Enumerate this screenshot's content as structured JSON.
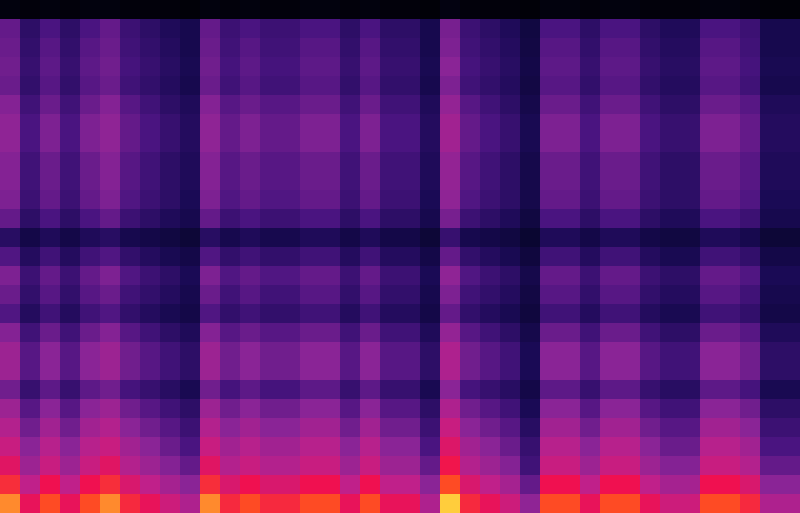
{
  "chart_data": {
    "type": "heatmap",
    "tick_labels": false,
    "zlim": [
      0,
      100
    ],
    "cells": [
      [
        5,
        4,
        5,
        4,
        5,
        5,
        4,
        4,
        4,
        3,
        5,
        4,
        5,
        4,
        4,
        5,
        5,
        4,
        5,
        4,
        4,
        3,
        6,
        4,
        4,
        4,
        3,
        5,
        5,
        4,
        5,
        5,
        4,
        4,
        4,
        5,
        5,
        4,
        3,
        3
      ],
      [
        42,
        32,
        38,
        32,
        38,
        42,
        35,
        32,
        29,
        26,
        42,
        35,
        38,
        35,
        35,
        38,
        38,
        32,
        38,
        32,
        32,
        26,
        45,
        35,
        32,
        29,
        22,
        38,
        38,
        32,
        38,
        38,
        32,
        29,
        29,
        38,
        38,
        35,
        26,
        26
      ],
      [
        43,
        33,
        40,
        33,
        40,
        43,
        36,
        33,
        30,
        26,
        43,
        36,
        40,
        36,
        36,
        40,
        40,
        33,
        40,
        33,
        33,
        26,
        46,
        36,
        33,
        30,
        23,
        40,
        40,
        33,
        40,
        40,
        33,
        30,
        30,
        40,
        40,
        36,
        26,
        26
      ],
      [
        44,
        34,
        41,
        34,
        41,
        44,
        37,
        34,
        31,
        27,
        44,
        37,
        41,
        37,
        37,
        41,
        41,
        34,
        41,
        34,
        34,
        27,
        48,
        37,
        34,
        31,
        24,
        41,
        41,
        34,
        41,
        41,
        34,
        31,
        31,
        41,
        41,
        37,
        27,
        27
      ],
      [
        43,
        33,
        40,
        33,
        40,
        43,
        36,
        33,
        30,
        26,
        43,
        36,
        40,
        36,
        36,
        40,
        40,
        33,
        40,
        33,
        33,
        26,
        46,
        36,
        33,
        30,
        23,
        40,
        40,
        33,
        40,
        40,
        33,
        30,
        30,
        40,
        40,
        36,
        26,
        26
      ],
      [
        47,
        36,
        43,
        36,
        43,
        47,
        40,
        36,
        32,
        29,
        47,
        40,
        43,
        40,
        40,
        43,
        43,
        36,
        43,
        36,
        36,
        29,
        50,
        40,
        36,
        32,
        25,
        43,
        43,
        36,
        43,
        43,
        36,
        32,
        32,
        43,
        43,
        40,
        29,
        29
      ],
      [
        49,
        38,
        46,
        38,
        46,
        49,
        42,
        38,
        34,
        30,
        49,
        42,
        46,
        42,
        42,
        46,
        46,
        38,
        46,
        38,
        38,
        30,
        53,
        42,
        38,
        34,
        27,
        46,
        46,
        38,
        46,
        46,
        38,
        34,
        34,
        46,
        46,
        42,
        30,
        30
      ],
      [
        49,
        38,
        46,
        38,
        46,
        49,
        42,
        38,
        34,
        30,
        49,
        42,
        46,
        42,
        42,
        46,
        46,
        38,
        46,
        38,
        38,
        30,
        53,
        42,
        38,
        34,
        27,
        46,
        46,
        38,
        46,
        46,
        38,
        34,
        34,
        46,
        46,
        42,
        30,
        30
      ],
      [
        47,
        36,
        43,
        36,
        43,
        47,
        40,
        36,
        32,
        29,
        47,
        40,
        43,
        40,
        40,
        43,
        43,
        36,
        43,
        36,
        36,
        29,
        50,
        40,
        36,
        32,
        25,
        43,
        43,
        36,
        43,
        43,
        36,
        32,
        32,
        43,
        43,
        40,
        29,
        29
      ],
      [
        47,
        36,
        43,
        36,
        43,
        47,
        40,
        36,
        32,
        29,
        47,
        40,
        43,
        40,
        40,
        43,
        43,
        36,
        43,
        36,
        36,
        29,
        50,
        40,
        36,
        32,
        25,
        43,
        43,
        36,
        43,
        43,
        36,
        32,
        32,
        43,
        43,
        40,
        29,
        29
      ],
      [
        46,
        35,
        42,
        35,
        42,
        46,
        39,
        35,
        32,
        28,
        46,
        39,
        42,
        39,
        39,
        42,
        42,
        35,
        42,
        35,
        35,
        28,
        49,
        39,
        35,
        32,
        25,
        42,
        42,
        35,
        42,
        42,
        35,
        32,
        32,
        42,
        42,
        39,
        28,
        28
      ],
      [
        42,
        32,
        38,
        32,
        38,
        42,
        35,
        32,
        29,
        26,
        42,
        35,
        38,
        35,
        35,
        38,
        38,
        32,
        38,
        32,
        32,
        26,
        45,
        35,
        32,
        29,
        22,
        38,
        38,
        32,
        38,
        38,
        32,
        29,
        29,
        38,
        38,
        35,
        26,
        26
      ],
      [
        31,
        24,
        29,
        24,
        29,
        31,
        26,
        24,
        22,
        19,
        31,
        26,
        29,
        26,
        26,
        29,
        29,
        24,
        29,
        24,
        24,
        19,
        34,
        26,
        24,
        22,
        17,
        29,
        29,
        24,
        29,
        29,
        24,
        22,
        22,
        29,
        29,
        26,
        19,
        19
      ],
      [
        39,
        30,
        36,
        30,
        36,
        39,
        33,
        30,
        27,
        24,
        39,
        33,
        36,
        33,
        33,
        36,
        36,
        30,
        36,
        30,
        30,
        24,
        42,
        33,
        30,
        27,
        21,
        36,
        36,
        30,
        36,
        36,
        30,
        27,
        27,
        36,
        36,
        33,
        24,
        24
      ],
      [
        46,
        35,
        42,
        35,
        42,
        46,
        39,
        35,
        32,
        28,
        46,
        39,
        42,
        39,
        39,
        42,
        42,
        35,
        42,
        35,
        35,
        28,
        49,
        39,
        35,
        32,
        25,
        42,
        42,
        35,
        42,
        42,
        35,
        32,
        32,
        42,
        42,
        39,
        28,
        28
      ],
      [
        43,
        33,
        40,
        33,
        40,
        43,
        36,
        33,
        30,
        26,
        43,
        36,
        40,
        36,
        36,
        40,
        40,
        33,
        40,
        33,
        33,
        26,
        46,
        36,
        33,
        30,
        23,
        40,
        40,
        33,
        40,
        40,
        33,
        30,
        30,
        40,
        40,
        36,
        26,
        26
      ],
      [
        39,
        30,
        36,
        30,
        36,
        39,
        33,
        30,
        27,
        24,
        39,
        33,
        36,
        33,
        33,
        36,
        36,
        30,
        36,
        30,
        30,
        24,
        42,
        33,
        30,
        27,
        21,
        36,
        36,
        30,
        36,
        36,
        30,
        27,
        27,
        36,
        36,
        33,
        24,
        24
      ],
      [
        47,
        36,
        43,
        36,
        43,
        47,
        40,
        36,
        32,
        29,
        47,
        40,
        43,
        40,
        40,
        43,
        43,
        36,
        43,
        36,
        36,
        29,
        50,
        40,
        36,
        32,
        25,
        43,
        43,
        36,
        43,
        43,
        36,
        32,
        32,
        43,
        43,
        40,
        29,
        29
      ],
      [
        52,
        40,
        48,
        40,
        48,
        52,
        44,
        40,
        36,
        32,
        52,
        44,
        48,
        44,
        44,
        48,
        48,
        40,
        48,
        40,
        40,
        32,
        56,
        44,
        40,
        36,
        28,
        48,
        48,
        40,
        48,
        48,
        40,
        36,
        36,
        48,
        48,
        44,
        32,
        32
      ],
      [
        52,
        40,
        48,
        40,
        48,
        52,
        44,
        40,
        36,
        32,
        52,
        44,
        48,
        44,
        44,
        48,
        48,
        40,
        48,
        40,
        40,
        32,
        56,
        44,
        40,
        36,
        28,
        48,
        48,
        40,
        48,
        48,
        40,
        36,
        36,
        48,
        48,
        44,
        32,
        32
      ],
      [
        44,
        34,
        41,
        34,
        41,
        44,
        37,
        34,
        31,
        27,
        44,
        37,
        41,
        37,
        37,
        41,
        41,
        34,
        41,
        34,
        34,
        27,
        48,
        37,
        34,
        31,
        24,
        41,
        41,
        34,
        41,
        41,
        34,
        31,
        31,
        41,
        41,
        37,
        27,
        27
      ],
      [
        52,
        40,
        48,
        40,
        48,
        52,
        44,
        40,
        36,
        32,
        52,
        44,
        48,
        44,
        44,
        48,
        48,
        40,
        48,
        40,
        40,
        32,
        56,
        44,
        40,
        36,
        28,
        48,
        48,
        40,
        48,
        48,
        40,
        36,
        36,
        48,
        48,
        44,
        32,
        32
      ],
      [
        57,
        44,
        53,
        44,
        53,
        57,
        48,
        44,
        40,
        35,
        57,
        48,
        53,
        48,
        48,
        53,
        53,
        44,
        53,
        44,
        44,
        35,
        62,
        48,
        44,
        40,
        31,
        53,
        53,
        44,
        53,
        53,
        44,
        40,
        40,
        53,
        53,
        48,
        35,
        35
      ],
      [
        62,
        48,
        58,
        48,
        58,
        62,
        53,
        48,
        43,
        38,
        62,
        53,
        58,
        53,
        53,
        58,
        58,
        48,
        58,
        48,
        48,
        38,
        67,
        53,
        48,
        43,
        34,
        58,
        58,
        48,
        58,
        58,
        48,
        43,
        43,
        58,
        58,
        53,
        38,
        38
      ],
      [
        68,
        52,
        62,
        52,
        62,
        68,
        57,
        52,
        47,
        42,
        68,
        57,
        62,
        57,
        57,
        62,
        62,
        52,
        62,
        52,
        52,
        42,
        73,
        57,
        52,
        47,
        36,
        62,
        62,
        52,
        62,
        62,
        52,
        47,
        47,
        62,
        62,
        57,
        42,
        42
      ],
      [
        78,
        60,
        72,
        60,
        72,
        78,
        66,
        60,
        54,
        48,
        78,
        66,
        72,
        66,
        66,
        72,
        72,
        60,
        72,
        60,
        60,
        48,
        84,
        66,
        60,
        54,
        42,
        72,
        72,
        60,
        72,
        72,
        60,
        54,
        54,
        72,
        72,
        66,
        48,
        48
      ],
      [
        91,
        70,
        84,
        70,
        84,
        91,
        77,
        70,
        63,
        56,
        91,
        77,
        84,
        77,
        77,
        84,
        84,
        70,
        84,
        70,
        70,
        56,
        98,
        77,
        70,
        63,
        49,
        84,
        84,
        70,
        84,
        84,
        70,
        63,
        63,
        84,
        84,
        77,
        56,
        56
      ]
    ]
  }
}
